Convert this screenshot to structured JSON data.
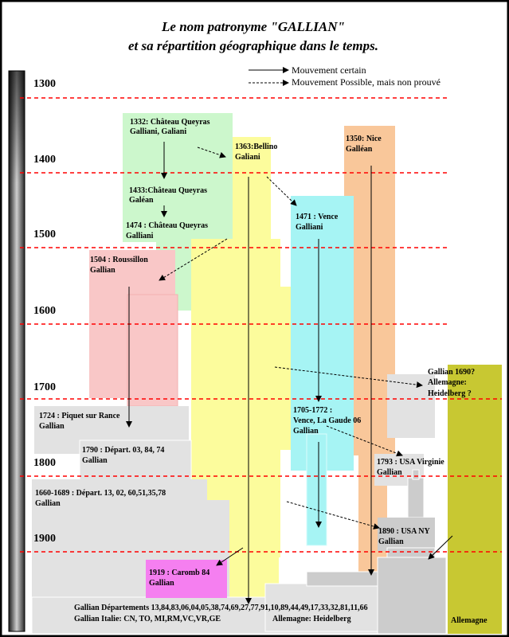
{
  "title": {
    "line1": "Le nom patronyme \"GALLIAN\"",
    "line2": "et sa répartition géographique dans le temps."
  },
  "legend": {
    "certain": "Mouvement certain",
    "possible": "Mouvement Possible, mais non prouvé"
  },
  "centuries": [
    "1300",
    "1400",
    "1500",
    "1600",
    "1700",
    "1800",
    "1900"
  ],
  "labels": {
    "queyras1332_a": "1332: Château Queyras",
    "queyras1332_b": "Galliani, Galiani",
    "bellino_a": "1363:Bellino",
    "bellino_b": "Galiani",
    "nice_a": "1350: Nice",
    "nice_b": "Galléan",
    "queyras1433_a": "1433:Château Queyras",
    "queyras1433_b": "Galéan",
    "vence1471_a": "1471 : Vence",
    "vence1471_b": "Galliani",
    "queyras1474_a": "1474 : Château Queyras",
    "queyras1474_b": "Galliani",
    "roussillon_a": "1504 : Roussillon",
    "roussillon_b": "Gallian",
    "allemagne1690_a": "Gallian  1690?",
    "allemagne1690_b": "Allemagne:",
    "allemagne1690_c": "Heidelberg ?",
    "piquet_a": "1724 : Piquet sur Rance",
    "piquet_b": "Gallian",
    "vence1705_a": "1705-1772 :",
    "vence1705_b": "Vence, La Gaude 06",
    "vence1705_c": "Gallian",
    "depart1790_a": "1790 : Départ. 03, 84, 74",
    "depart1790_b": "Gallian",
    "virginie_a": "1793 : USA Virginie",
    "virginie_b": "Gallian",
    "depart1660_a": "1660-1689 : Départ. 13, 02, 60,51,35,78",
    "depart1660_b": "Gallian",
    "usany_a": "1890 : USA NY",
    "usany_b": "Gallian",
    "caromb_a": "1919 : Caromb 84",
    "caromb_b": "Gallian",
    "bottom_a": "Gallian Départements 13,84,83,06,04,05,38,74,69,27,77,91,10,89,44,49,17,33,32,81,11,66",
    "bottom_b": "Gallian Italie: CN, TO, MI,RM,VC,VR,GE",
    "bottom_c": "Allemagne: Heidelberg",
    "allemagne": "Allemagne"
  },
  "colors": {
    "green": "#ccf7cc",
    "yellow": "#fcfc9c",
    "orange": "#f9c79a",
    "cyan": "#a6f4f4",
    "pink": "#f9c7c7",
    "magenta": "#f57ff0",
    "grey": "#e2e2e2",
    "olive": "#c8c832",
    "red_dash": "#ff0000"
  }
}
